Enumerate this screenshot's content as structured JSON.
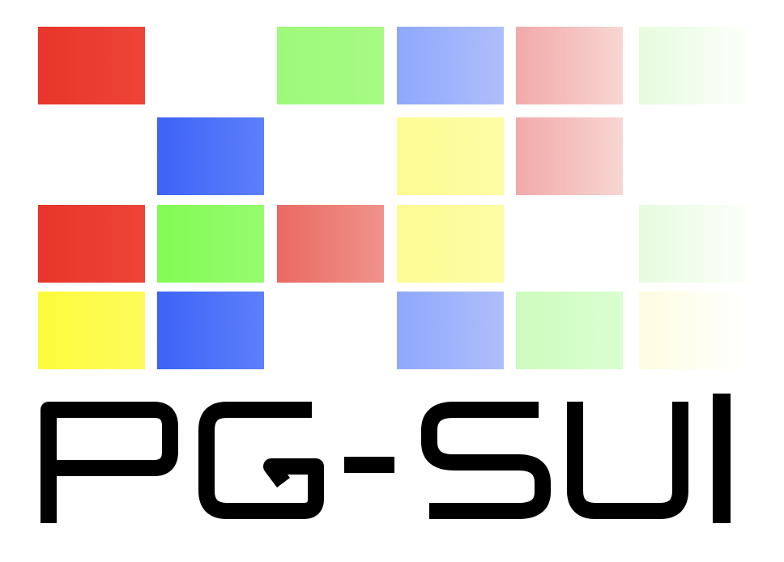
{
  "logo": {
    "wordmark": "PG-SUI",
    "wordmark_color": "#000000",
    "background": "#ffffff"
  },
  "tiles": [
    {
      "id": "r0c0",
      "from": "#e8352a",
      "to": "#ec4538"
    },
    {
      "id": "r0c2",
      "from": "#9ef97a",
      "to": "#a6fb84"
    },
    {
      "id": "r0c3",
      "from": "#8fa8fb",
      "to": "#aebefb"
    },
    {
      "id": "r0c4",
      "from": "#f2a9a9",
      "to": "#f7d6d2"
    },
    {
      "id": "r0c5",
      "from": "#e6fbdf",
      "to": "#fbfff9"
    },
    {
      "id": "r1c1",
      "from": "#3e63f6",
      "to": "#5c80fa"
    },
    {
      "id": "r1c3",
      "from": "#fdfb92",
      "to": "#fdfda6"
    },
    {
      "id": "r1c4",
      "from": "#f2a9a9",
      "to": "#f7d6d2"
    },
    {
      "id": "r2c0",
      "from": "#e8352a",
      "to": "#ec4538"
    },
    {
      "id": "r2c1",
      "from": "#83fb55",
      "to": "#96fb6e"
    },
    {
      "id": "r2c2",
      "from": "#ea6a63",
      "to": "#f0938a"
    },
    {
      "id": "r2c3",
      "from": "#fdfb92",
      "to": "#fdfda6"
    },
    {
      "id": "r2c5",
      "from": "#e6fbdf",
      "to": "#fbfff9"
    },
    {
      "id": "r3c0",
      "from": "#fdfb3c",
      "to": "#fdfb5a"
    },
    {
      "id": "r3c1",
      "from": "#3e63f6",
      "to": "#5c80fa"
    },
    {
      "id": "r3c3",
      "from": "#8fa8fb",
      "to": "#aebefb"
    },
    {
      "id": "r3c4",
      "from": "#cdfbbd",
      "to": "#daffd0"
    },
    {
      "id": "r3c5",
      "from": "#fdfde0",
      "to": "#ffffff"
    }
  ]
}
